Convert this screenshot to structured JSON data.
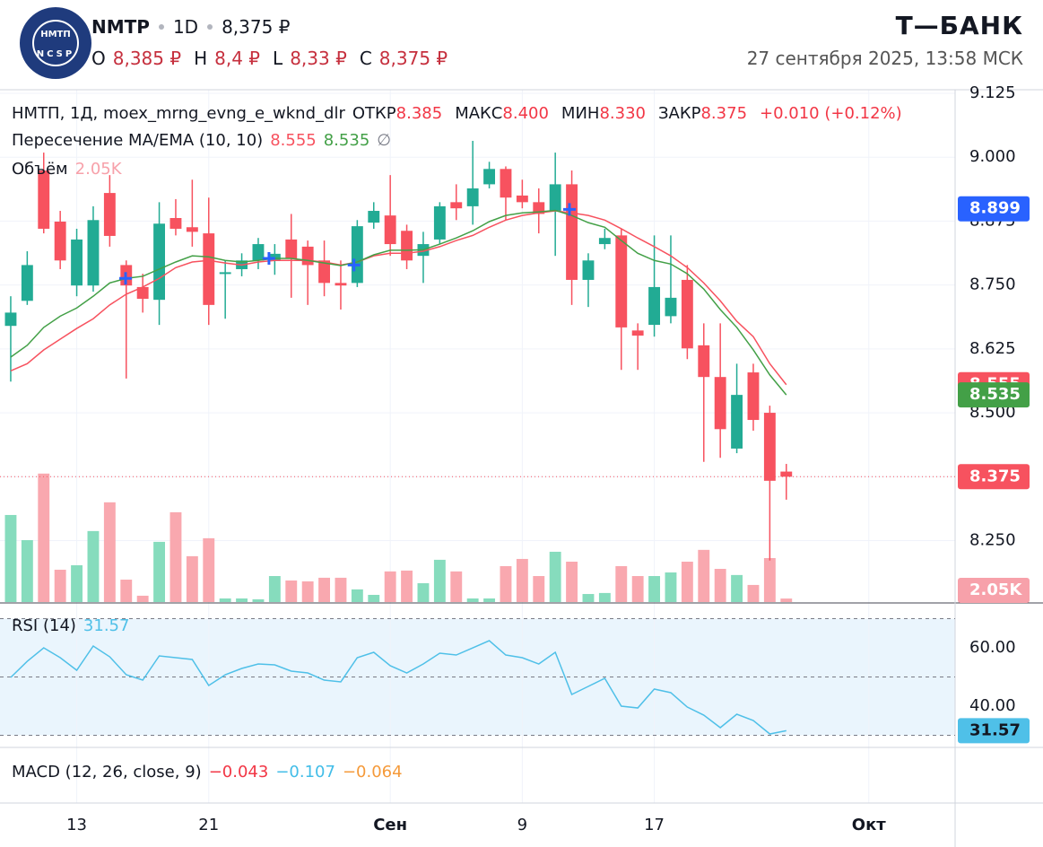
{
  "header": {
    "logo_top": "НМТП",
    "logo_bottom": "NCSP",
    "ticker": "NMTP",
    "interval": "1D",
    "price": "8,375 ₽",
    "ohlc": [
      {
        "key": "O",
        "value": "8,385 ₽"
      },
      {
        "key": "H",
        "value": "8,4 ₽"
      },
      {
        "key": "L",
        "value": "8,33 ₽"
      },
      {
        "key": "C",
        "value": "8,375 ₽"
      }
    ],
    "brand": "Т—БАНК",
    "datetime": "27 сентября 2025, 13:58 МСК"
  },
  "chart_data": [
    {
      "type": "candlestick",
      "legend": {
        "symbol": "НМТП, 1Д, moex_mrng_evng_e_wknd_dlr",
        "fields": [
          {
            "key": "ОТКР",
            "value": "8.385"
          },
          {
            "key": "МАКС",
            "value": "8.400"
          },
          {
            "key": "МИН",
            "value": "8.330"
          },
          {
            "key": "ЗАКР",
            "value": "8.375"
          }
        ],
        "change": "+0.010 (+0.12%)"
      },
      "indicator_name": "Пересечение MA/EMA (10, 10)",
      "indicator_suffix": "∅",
      "x": [
        0,
        1,
        2,
        3,
        4,
        5,
        6,
        7,
        8,
        9,
        10,
        11,
        12,
        13,
        14,
        15,
        16,
        17,
        18,
        19,
        20,
        21,
        22,
        23,
        24,
        25,
        26,
        27,
        28,
        29,
        30,
        31,
        32,
        33,
        34,
        35,
        36,
        37,
        38,
        39,
        40,
        41,
        42,
        43,
        44,
        45,
        46,
        47
      ],
      "open": [
        8.67,
        8.719,
        8.974,
        8.874,
        8.749,
        8.749,
        8.93,
        8.789,
        8.746,
        8.721,
        8.881,
        8.863,
        8.851,
        8.772,
        8.781,
        8.798,
        8.798,
        8.839,
        8.825,
        8.798,
        8.754,
        8.754,
        8.872,
        8.886,
        8.856,
        8.807,
        8.839,
        8.912,
        8.904,
        8.947,
        8.977,
        8.925,
        8.912,
        8.895,
        8.947,
        8.76,
        8.83,
        8.847,
        8.661,
        8.672,
        8.689,
        8.76,
        8.632,
        8.57,
        8.43,
        8.579,
        8.5,
        8.385
      ],
      "high": [
        8.728,
        8.816,
        9.009,
        8.895,
        8.86,
        8.904,
        8.965,
        8.798,
        8.772,
        8.912,
        8.918,
        8.956,
        8.921,
        8.798,
        8.812,
        8.842,
        8.83,
        8.889,
        8.837,
        8.837,
        8.798,
        8.877,
        8.912,
        8.965,
        8.868,
        8.854,
        8.912,
        8.947,
        9.032,
        8.991,
        8.982,
        8.956,
        8.939,
        9.009,
        8.974,
        8.812,
        8.86,
        8.86,
        8.675,
        8.847,
        8.847,
        8.789,
        8.675,
        8.675,
        8.596,
        8.596,
        8.514,
        8.4
      ],
      "low": [
        8.561,
        8.711,
        8.851,
        8.781,
        8.728,
        8.737,
        8.825,
        8.567,
        8.696,
        8.672,
        8.847,
        8.825,
        8.672,
        8.684,
        8.767,
        8.781,
        8.77,
        8.725,
        8.711,
        8.728,
        8.702,
        8.746,
        8.86,
        8.807,
        8.781,
        8.754,
        8.83,
        8.877,
        8.868,
        8.939,
        8.877,
        8.9,
        8.851,
        8.807,
        8.711,
        8.707,
        8.82,
        8.584,
        8.584,
        8.649,
        8.675,
        8.605,
        8.404,
        8.412,
        8.421,
        8.465,
        8.211,
        8.33
      ],
      "close": [
        8.696,
        8.789,
        8.86,
        8.798,
        8.839,
        8.877,
        8.846,
        8.749,
        8.723,
        8.87,
        8.86,
        8.854,
        8.711,
        8.775,
        8.798,
        8.83,
        8.811,
        8.802,
        8.789,
        8.754,
        8.749,
        8.865,
        8.895,
        8.83,
        8.798,
        8.83,
        8.904,
        8.9,
        8.939,
        8.977,
        8.921,
        8.912,
        8.889,
        8.947,
        8.76,
        8.798,
        8.842,
        8.667,
        8.651,
        8.746,
        8.725,
        8.626,
        8.57,
        8.468,
        8.535,
        8.486,
        8.367,
        8.375
      ],
      "up_color": "#22ab94",
      "down_color": "#f7525f",
      "series": [
        {
          "color": "#f7525f",
          "values": [
            8.582,
            8.596,
            8.623,
            8.644,
            8.665,
            8.684,
            8.711,
            8.732,
            8.746,
            8.763,
            8.784,
            8.795,
            8.798,
            8.793,
            8.789,
            8.795,
            8.798,
            8.798,
            8.798,
            8.795,
            8.789,
            8.795,
            8.807,
            8.812,
            8.812,
            8.816,
            8.825,
            8.837,
            8.847,
            8.863,
            8.877,
            8.886,
            8.891,
            8.895,
            8.891,
            8.886,
            8.877,
            8.86,
            8.842,
            8.825,
            8.807,
            8.784,
            8.754,
            8.719,
            8.679,
            8.649,
            8.596,
            8.555
          ]
        },
        {
          "color": "#43a047",
          "values": [
            8.609,
            8.632,
            8.667,
            8.689,
            8.705,
            8.728,
            8.754,
            8.763,
            8.767,
            8.781,
            8.795,
            8.807,
            8.805,
            8.798,
            8.795,
            8.798,
            8.802,
            8.802,
            8.798,
            8.793,
            8.788,
            8.795,
            8.809,
            8.818,
            8.818,
            8.819,
            8.83,
            8.842,
            8.856,
            8.874,
            8.886,
            8.891,
            8.893,
            8.896,
            8.886,
            8.872,
            8.863,
            8.837,
            8.812,
            8.798,
            8.791,
            8.772,
            8.742,
            8.702,
            8.667,
            8.623,
            8.574,
            8.535
          ]
        }
      ],
      "volume": {
        "name": "Объём",
        "values": [
          50900,
          36200,
          75100,
          18900,
          21500,
          41500,
          58300,
          13100,
          3700,
          35200,
          52500,
          26800,
          37300,
          2100,
          2100,
          1600,
          15200,
          12600,
          12100,
          14200,
          14200,
          7400,
          4200,
          17900,
          18400,
          11000,
          24700,
          17900,
          2100,
          2100,
          21000,
          25200,
          15200,
          29400,
          23600,
          4700,
          5300,
          21000,
          15200,
          15200,
          17300,
          23600,
          30500,
          19400,
          15800,
          10000,
          25700,
          2050
        ],
        "last_label": "2.05K",
        "vlim": [
          0,
          300000
        ],
        "up_color": "#86dcbd",
        "down_color": "#f9a8af",
        "label_color": "#f7a1aa"
      },
      "crossings": [
        {
          "x": 6.96,
          "y": 8.763
        },
        {
          "x": 15.65,
          "y": 8.802
        },
        {
          "x": 20.8,
          "y": 8.789
        },
        {
          "x": 33.86,
          "y": 8.898
        }
      ],
      "crossing_color": "#2962ff",
      "highlight_price": 8.899,
      "highlight_color": "#2962ff",
      "xlim": [
        -0.65,
        57.23
      ],
      "xticks": [
        {
          "value": 4,
          "label": "13"
        },
        {
          "value": 12,
          "label": "21"
        },
        {
          "value": 23,
          "label": "Сен",
          "bold": true
        },
        {
          "value": 31,
          "label": "9"
        },
        {
          "value": 39,
          "label": "17"
        },
        {
          "value": 52,
          "label": "Окт",
          "bold": true
        }
      ],
      "ylim": [
        8.128,
        9.132
      ],
      "yticks": [
        {
          "value": 9.125,
          "label": "9.125"
        },
        {
          "value": 9.0,
          "label": "9.000"
        },
        {
          "value": 8.875,
          "label": "8.875"
        },
        {
          "value": 8.75,
          "label": "8.750"
        },
        {
          "value": 8.625,
          "label": "8.625"
        },
        {
          "value": 8.5,
          "label": "8.500"
        },
        {
          "value": 8.375,
          "label": "8.375"
        },
        {
          "value": 8.25,
          "label": "8.250"
        }
      ],
      "grid": true
    },
    {
      "type": "line",
      "title": "RSI (14)",
      "color": "#4fc0e8",
      "values": [
        49.85,
        55.38,
        60.0,
        56.62,
        52.31,
        60.62,
        56.92,
        50.77,
        48.92,
        57.23,
        56.62,
        56.0,
        47.08,
        50.77,
        52.92,
        54.46,
        54.15,
        52.0,
        51.38,
        48.92,
        48.31,
        56.62,
        58.46,
        53.85,
        51.38,
        54.46,
        58.15,
        57.54,
        60.0,
        62.46,
        57.54,
        56.62,
        54.46,
        58.46,
        44.0,
        46.77,
        49.54,
        40.0,
        39.38,
        45.85,
        44.62,
        39.69,
        36.92,
        32.62,
        37.23,
        35.08,
        30.46,
        31.57
      ],
      "levels": [
        70,
        50,
        30
      ],
      "band_color": "#eaf5fd",
      "ylim": [
        25.85,
        75.08
      ],
      "yticks": [
        {
          "value": 60,
          "label": "60.00"
        },
        {
          "value": 40,
          "label": "40.00"
        }
      ]
    },
    {
      "type": "macd",
      "title": "MACD (12, 26, close, 9)",
      "legend_values": [
        {
          "label": "−0.043",
          "color": "#f23645"
        },
        {
          "label": "−0.107",
          "color": "#42bde8"
        },
        {
          "label": "−0.064",
          "color": "#f59a3a"
        }
      ]
    }
  ]
}
